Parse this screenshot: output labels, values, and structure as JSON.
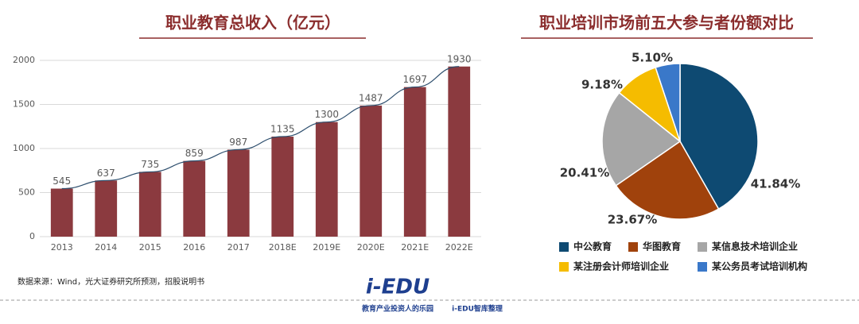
{
  "chart_data": [
    {
      "type": "bar",
      "title": "职业教育总收入（亿元）",
      "categories": [
        "2013",
        "2014",
        "2015",
        "2016",
        "2017",
        "2018E",
        "2019E",
        "2020E",
        "2021E",
        "2022E"
      ],
      "values": [
        545,
        637,
        735,
        859,
        987,
        1135,
        1300,
        1487,
        1697,
        1930
      ],
      "color": "#8b3a3f",
      "trend_line": true,
      "line_color": "#2e4f6e",
      "ylim": [
        0,
        2000
      ],
      "yticks": [
        0,
        500,
        1000,
        1500,
        2000
      ],
      "grid": true
    },
    {
      "type": "pie",
      "title": "职业培训市场前五大参与者份额对比",
      "categories": [
        "中公教育",
        "华图教育",
        "某信息技术培训企业",
        "某注册会计师培训企业",
        "某公务员考试培训机构"
      ],
      "values": [
        41.84,
        23.67,
        20.41,
        9.18,
        5.1
      ],
      "value_labels": [
        "41.84%",
        "23.67%",
        "20.41%",
        "9.18%",
        "5.10%"
      ],
      "colors": [
        "#0e4a72",
        "#a0420c",
        "#a6a6a6",
        "#f5bc00",
        "#3a78c9"
      ]
    }
  ],
  "source": "数据来源：Wind，光大证券研究所预测，招股说明书",
  "logo": {
    "name": "i-EDU",
    "slogan": "教育产业投资人的乐园",
    "credit": "i-EDU智库整理"
  }
}
